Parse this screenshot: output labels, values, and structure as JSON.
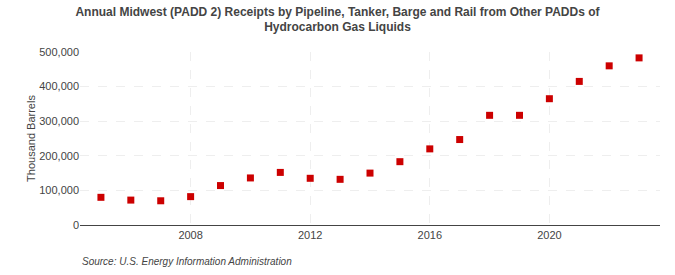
{
  "chart_data": {
    "type": "scatter",
    "title": "Annual Midwest (PADD 2) Receipts by Pipeline, Tanker, Barge and Rail from Other PADDs of\nHydrocarbon Gas Liquids",
    "ylabel": "Thousand Barrels",
    "annotations": [
      "Source: U.S. Energy Information Administration"
    ],
    "x": [
      2005,
      2006,
      2007,
      2008,
      2009,
      2010,
      2011,
      2012,
      2013,
      2014,
      2015,
      2016,
      2017,
      2018,
      2019,
      2020,
      2021,
      2022,
      2023
    ],
    "values": [
      80000,
      72000,
      70000,
      82000,
      114000,
      136000,
      152000,
      135000,
      132000,
      150000,
      183000,
      220000,
      247000,
      317000,
      317000,
      365000,
      415000,
      460000,
      483000
    ],
    "color": "#cc0000",
    "marker": "square",
    "xlim": [
      2004.3,
      2023.7
    ],
    "xticks": [
      2008,
      2012,
      2016,
      2020
    ],
    "ylim": [
      0,
      500000
    ],
    "yticks": [
      0,
      {
        "value": 100000,
        "label": "100,000"
      },
      {
        "value": 200000,
        "label": "200,000"
      },
      {
        "value": 300000,
        "label": "300,000"
      },
      {
        "value": 400000,
        "label": "400,000"
      },
      {
        "value": 500000,
        "label": "500,000"
      }
    ],
    "grid": true
  }
}
